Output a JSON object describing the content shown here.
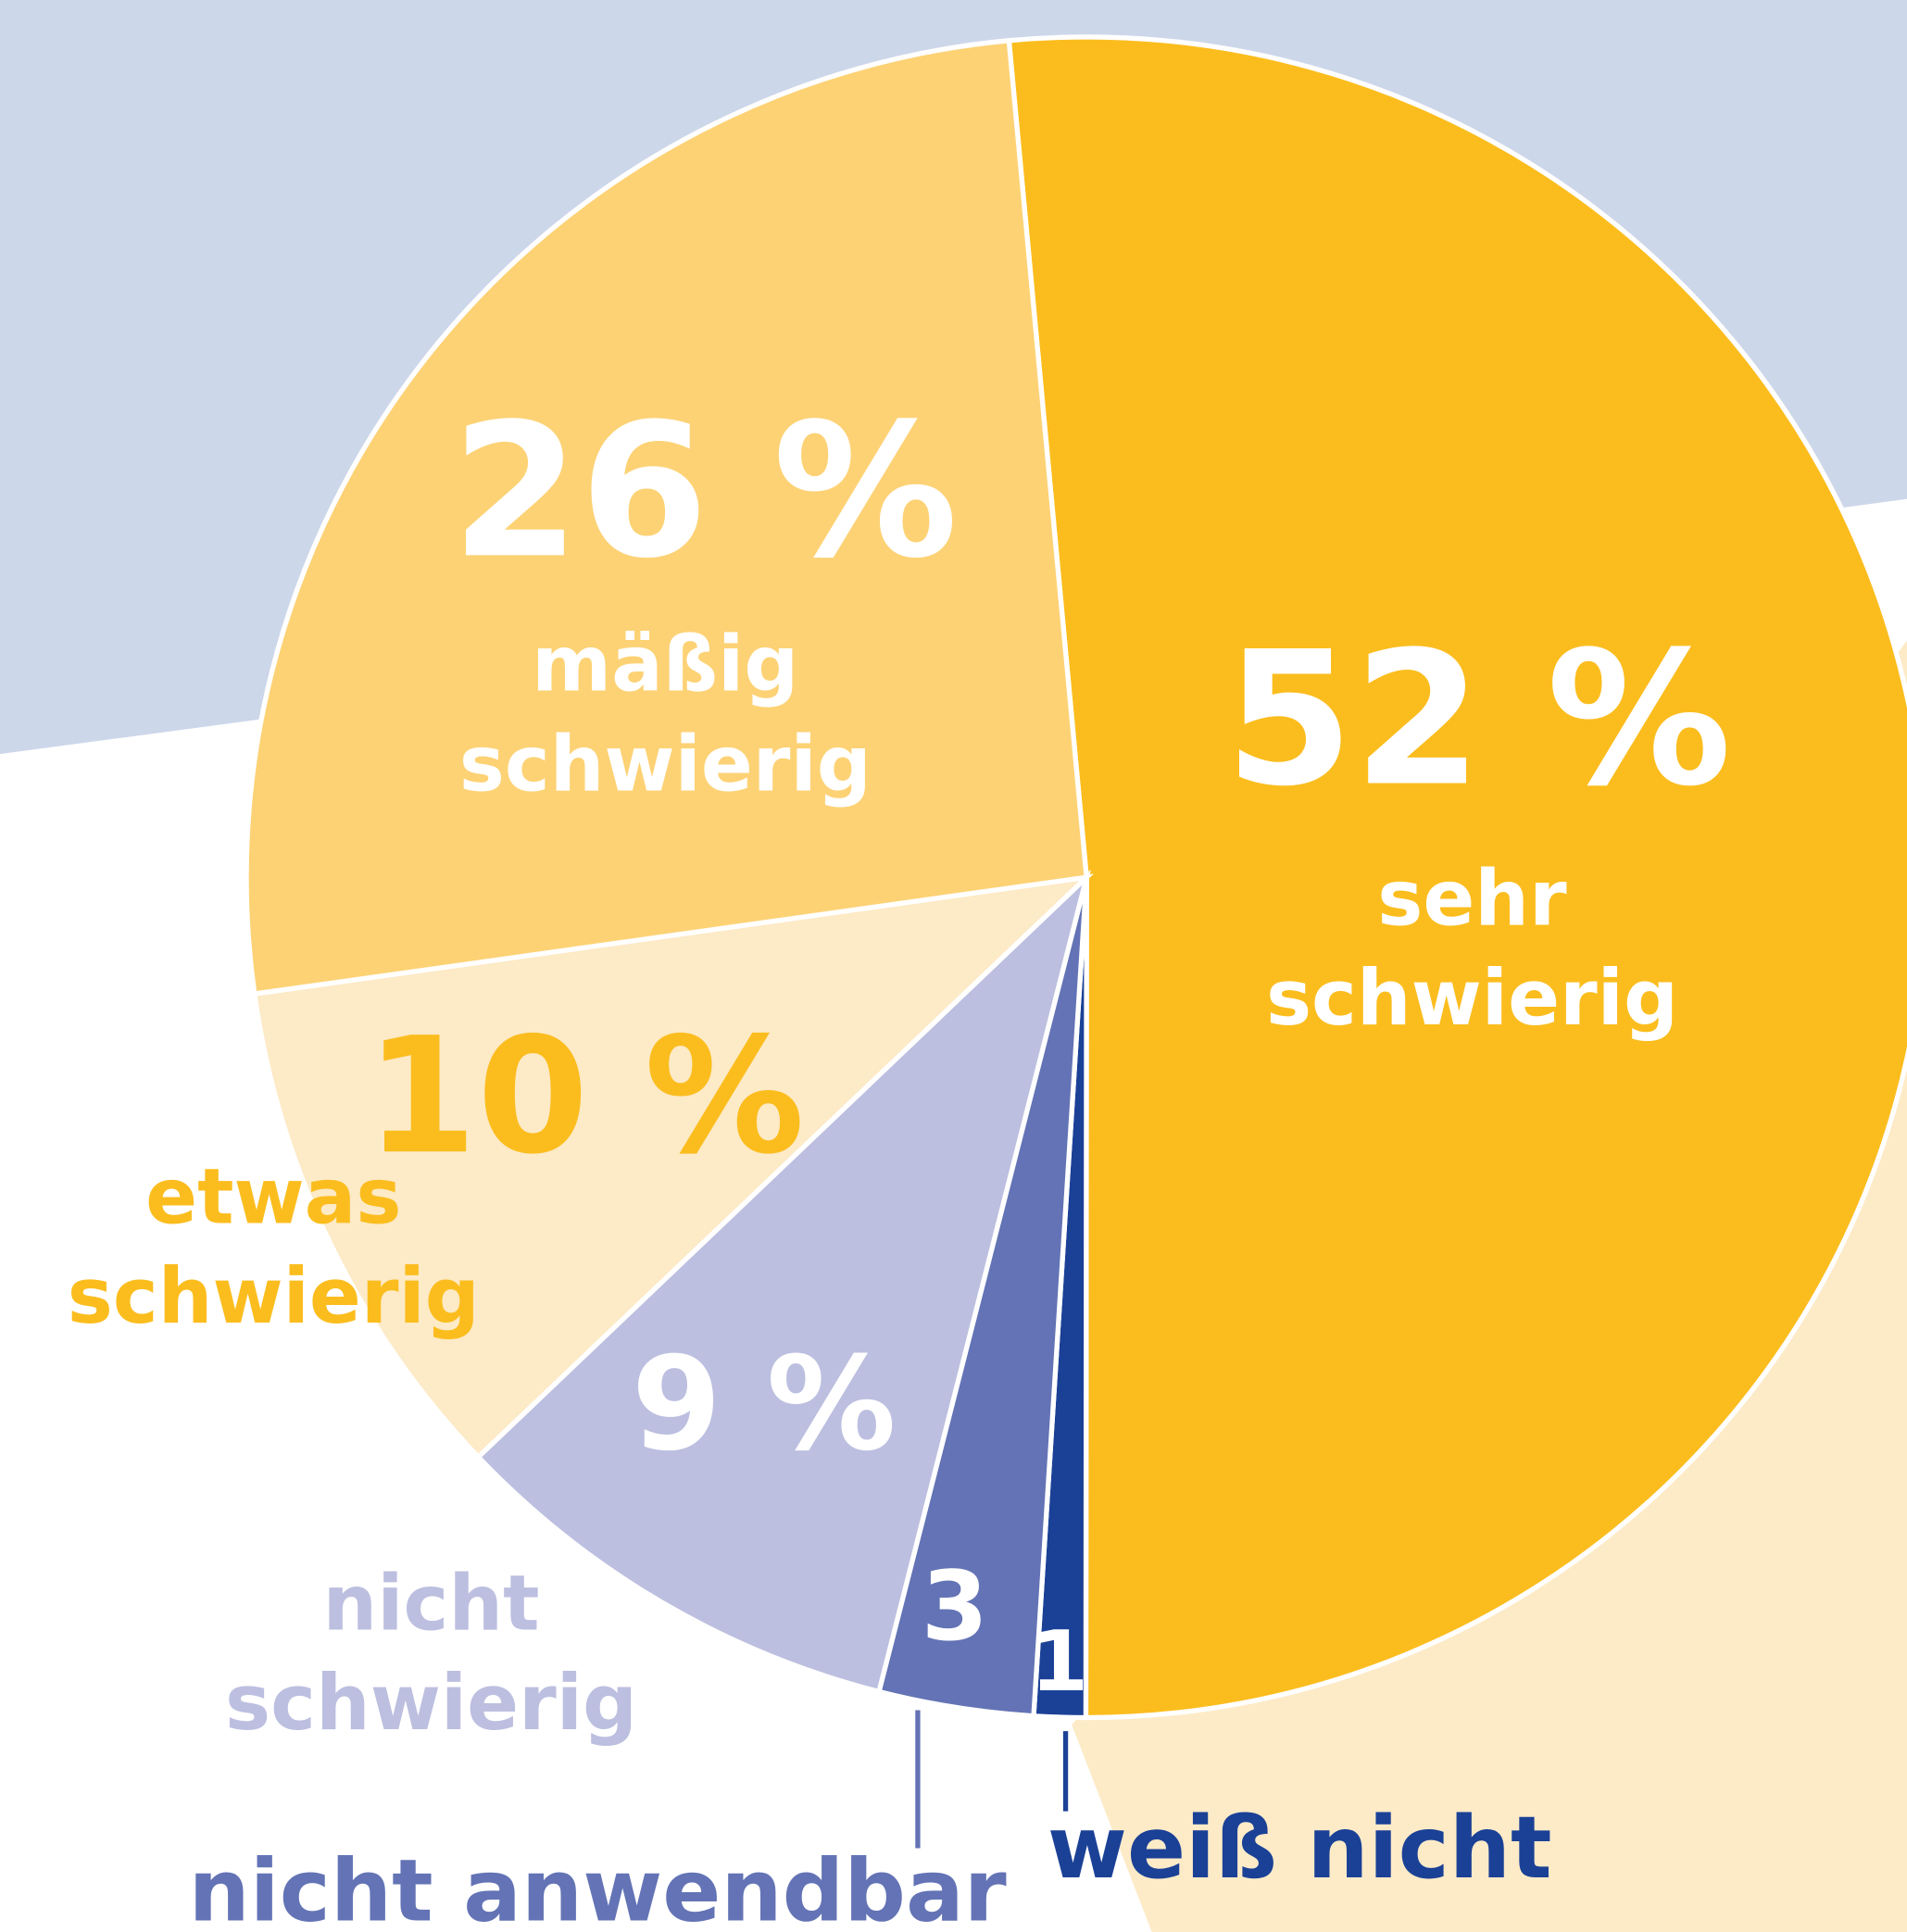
{
  "chart_data": {
    "type": "pie",
    "categories": [
      "sehr schwierig",
      "weiß nicht",
      "nicht anwendbar",
      "nicht schwierig",
      "etwas schwierig",
      "mäßig schwierig"
    ],
    "values": [
      52,
      1,
      3,
      9,
      10,
      26
    ],
    "value_labels": [
      "52 %",
      "1",
      "3",
      "9 %",
      "10 %",
      "26 %"
    ],
    "colors": [
      "#fbbd1e",
      "#1b4196",
      "#6373b5",
      "#bcbfdf",
      "#fdeac6",
      "#fdd275"
    ]
  }
}
